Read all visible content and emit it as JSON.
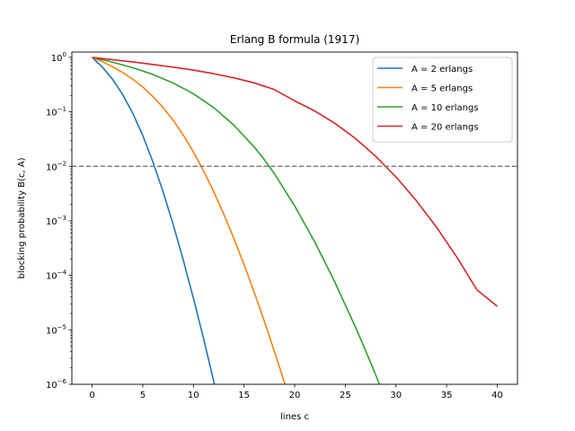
{
  "chart_data": {
    "type": "line",
    "title": "Erlang B formula (1917)",
    "xlabel": "lines c",
    "ylabel": "blocking probability B(c, A)",
    "xlim": [
      -2,
      42
    ],
    "ylim": [
      1e-06,
      1.25
    ],
    "yscale": "log",
    "xticks": [
      0,
      5,
      10,
      15,
      20,
      25,
      30,
      35,
      40
    ],
    "yticks": [
      {
        "value": 1,
        "exp": "0"
      },
      {
        "value": 0.1,
        "exp": "−1"
      },
      {
        "value": 0.01,
        "exp": "−2"
      },
      {
        "value": 0.001,
        "exp": "−3"
      },
      {
        "value": 0.0001,
        "exp": "−4"
      },
      {
        "value": 1e-05,
        "exp": "−5"
      },
      {
        "value": 1e-06,
        "exp": "−6"
      }
    ],
    "ytick_base": "10",
    "grid": false,
    "legend_position": "upper right",
    "reference_line": {
      "y": 0.01,
      "color": "#808080",
      "style": "dashed"
    },
    "series": [
      {
        "name": "A = 2 erlangs",
        "color": "#1f77b4",
        "x": [
          0,
          1,
          2,
          3,
          4,
          5,
          6,
          7,
          8,
          9,
          10,
          11,
          12,
          13
        ],
        "y": [
          1,
          0.6667,
          0.4,
          0.2105,
          0.0952,
          0.0367,
          0.01208,
          0.003441,
          0.0008595,
          0.0001907,
          3.815e-05,
          6.936e-06,
          1.156e-06,
          1.778e-07
        ]
      },
      {
        "name": "A = 5 erlangs",
        "color": "#ff7f0e",
        "x": [
          0,
          1,
          2,
          3,
          4,
          5,
          6,
          7,
          8,
          9,
          10,
          11,
          12,
          13,
          14,
          15,
          16,
          17,
          18,
          19,
          20
        ],
        "y": [
          1,
          0.8333,
          0.6757,
          0.5297,
          0.3983,
          0.2849,
          0.1918,
          0.1205,
          0.07004,
          0.03745,
          0.01838,
          0.008285,
          0.003441,
          0.001322,
          0.000472,
          0.0001573,
          4.916e-05,
          1.446e-05,
          4.016e-06,
          1.057e-06,
          2.642e-07
        ]
      },
      {
        "name": "A = 10 erlangs",
        "color": "#2ca02c",
        "x": [
          0,
          2,
          4,
          6,
          8,
          10,
          12,
          14,
          16,
          17,
          18,
          20,
          22,
          24,
          26,
          27,
          28,
          29
        ],
        "y": [
          1,
          0.8197,
          0.647,
          0.4872,
          0.3383,
          0.2146,
          0.1197,
          0.05697,
          0.02267,
          0.01327,
          0.007317,
          0.001877,
          0.0004029,
          7.275e-05,
          1.121e-05,
          4.15e-06,
          1.482e-06,
          5.111e-07
        ]
      },
      {
        "name": "A = 20 erlangs",
        "color": "#d62728",
        "x": [
          0,
          2,
          4,
          6,
          8,
          10,
          12,
          14,
          16,
          18,
          20,
          22,
          24,
          26,
          28,
          30,
          32,
          34,
          36,
          38,
          40
        ],
        "y": [
          1,
          0.908,
          0.825,
          0.74,
          0.66,
          0.583,
          0.501,
          0.421,
          0.34,
          0.256,
          0.1589,
          0.1036,
          0.0611,
          0.0324,
          0.0153,
          0.0064,
          0.00236,
          0.000765,
          0.000217,
          5.4e-05,
          2.7e-05
        ]
      }
    ]
  }
}
